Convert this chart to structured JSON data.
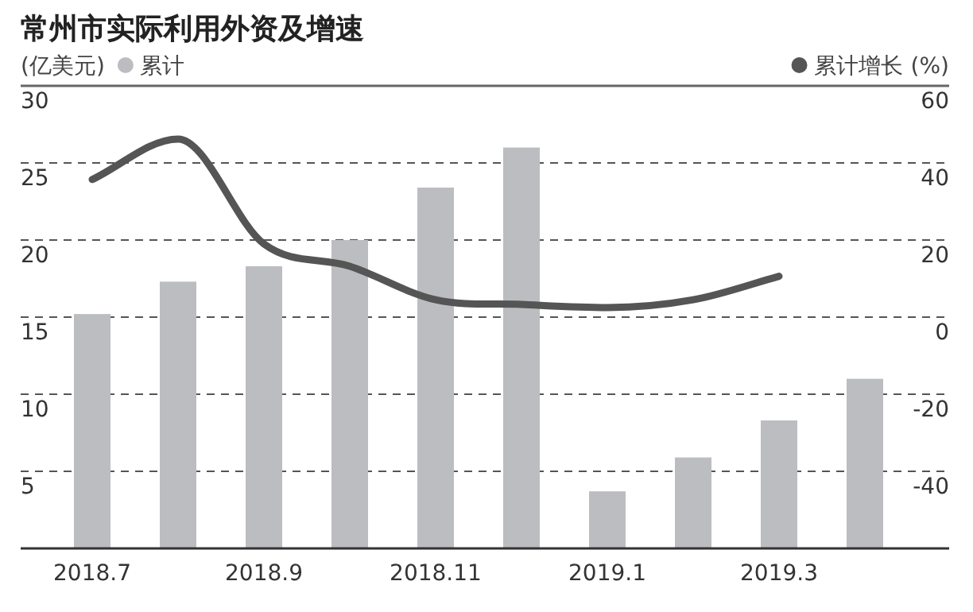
{
  "chart_data": {
    "type": "bar",
    "title": "常州市实际利用外资及增速",
    "ylabel": "(亿美元)",
    "y2label": "(%)",
    "categories": [
      "2018.7",
      null,
      "2018.9",
      null,
      "2018.11",
      null,
      "2019.1",
      null,
      "2019.3",
      null
    ],
    "series": [
      {
        "name": "累计",
        "color": "#bcbdc0",
        "values": [
          15.2,
          17.3,
          18.3,
          20.0,
          23.4,
          26.0,
          3.7,
          5.9,
          8.3,
          11.0
        ]
      },
      {
        "name": "累计增长",
        "type": "line",
        "axis": "y2",
        "color": "#555555",
        "values": [
          35.7,
          46.2,
          19,
          13.2,
          4.5,
          3.3,
          2.5,
          4.5,
          10.6,
          null
        ]
      }
    ],
    "ylim": [
      0,
      30
    ],
    "yticks": [
      5,
      10,
      15,
      20,
      25,
      30
    ],
    "y2lim": [
      -60,
      60
    ],
    "y2ticks": [
      -40,
      -20,
      0,
      20,
      40,
      60
    ],
    "grid": "y",
    "legend": "top",
    "line_style": "solid",
    "marker": "none"
  }
}
